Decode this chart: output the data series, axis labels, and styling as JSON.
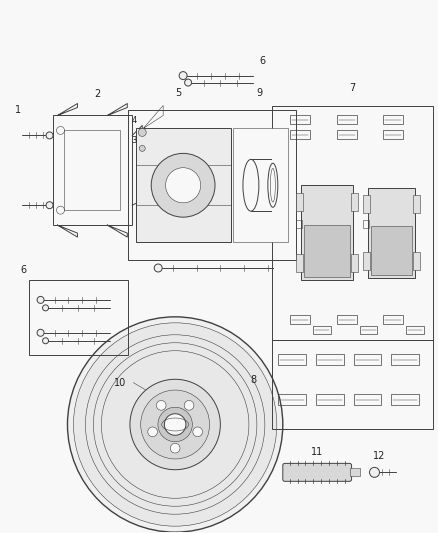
{
  "bg_color": "#f8f8f8",
  "line_color": "#404040",
  "label_color": "#222222",
  "fig_width": 4.38,
  "fig_height": 5.33,
  "dpi": 100
}
